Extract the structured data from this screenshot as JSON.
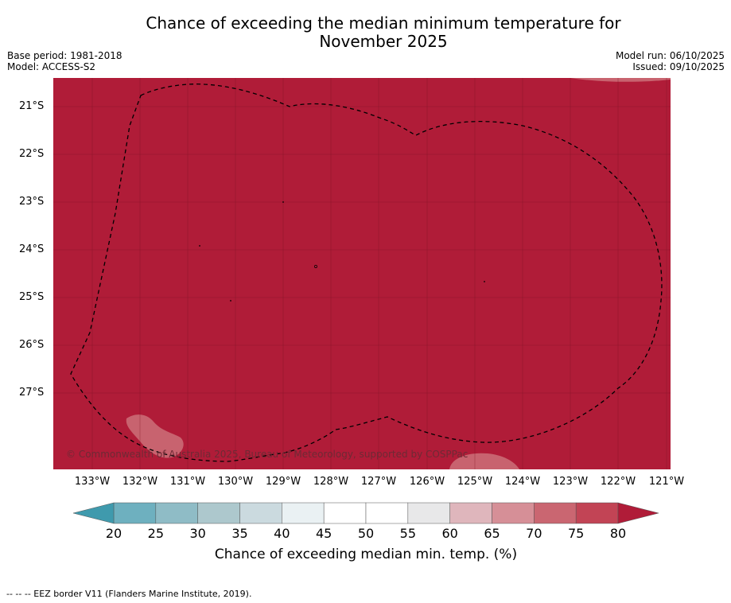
{
  "title": {
    "line1": "Chance of exceeding the median minimum temperature for",
    "line2": "November 2025"
  },
  "meta": {
    "base_period": "Base period: 1981-2018",
    "model": "Model: ACCESS-S2",
    "model_run": "Model run: 06/10/2025",
    "issued": "Issued: 09/10/2025"
  },
  "map": {
    "copyright": "© Commonwealth of Australia 2025, Bureau of Meteorology, supported by COSPPac",
    "background_color": "#b01c38",
    "lighter_patch_color": "#c8636f",
    "lat_labels": [
      "21°S",
      "22°S",
      "23°S",
      "24°S",
      "25°S",
      "26°S",
      "27°S"
    ],
    "lon_labels": [
      "133°W",
      "132°W",
      "131°W",
      "130°W",
      "129°W",
      "128°W",
      "127°W",
      "126°W",
      "125°W",
      "124°W",
      "123°W",
      "122°W",
      "121°W"
    ]
  },
  "colorbar": {
    "ticks": [
      "20",
      "25",
      "30",
      "35",
      "40",
      "45",
      "50",
      "55",
      "60",
      "65",
      "70",
      "75",
      "80"
    ],
    "colors": [
      "#3f9aad",
      "#6eb0bf",
      "#8fbcc6",
      "#adc8cd",
      "#cbdadf",
      "#eaf1f3",
      "#ffffff",
      "#ffffff",
      "#e8e8e9",
      "#dfb6bc",
      "#d68f97",
      "#ca6671",
      "#c24455",
      "#b01c38"
    ],
    "label": "Chance of exceeding median min. temp. (%)"
  },
  "legend_note": "--  --  -- EEZ border V11 (Flanders Marine Institute, 2019)."
}
